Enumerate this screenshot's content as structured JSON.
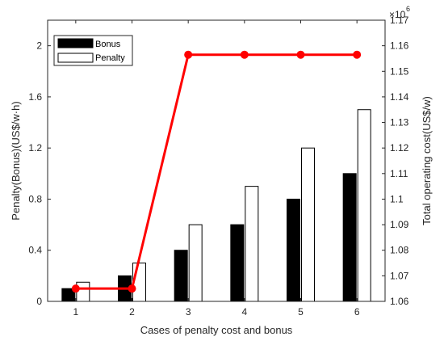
{
  "chart_data": {
    "type": "bar",
    "categories": [
      "1",
      "2",
      "3",
      "4",
      "5",
      "6"
    ],
    "series": [
      {
        "name": "Bonus",
        "axis": "left",
        "type": "bar",
        "color": "#000000",
        "values": [
          0.1,
          0.2,
          0.4,
          0.6,
          0.8,
          1.0
        ]
      },
      {
        "name": "Penalty",
        "axis": "left",
        "type": "bar",
        "color": "#ffffff",
        "values": [
          0.15,
          0.3,
          0.6,
          0.9,
          1.2,
          1.5
        ]
      },
      {
        "axis": "right",
        "type": "line",
        "color": "#ff0000",
        "values": [
          1.065,
          1.065,
          1.1565,
          1.1565,
          1.1565,
          1.1565
        ]
      }
    ],
    "xlabel": "Cases of penalty cost and bonus",
    "ylabel_left": "Penalty(Bonus)(US$/w·h)",
    "ylabel_right": "Total operating cost(US$/w)",
    "right_axis_multiplier": "×10",
    "right_axis_exponent": "6",
    "ylim_left": [
      0,
      2.2
    ],
    "ylim_right": [
      1.06,
      1.17
    ],
    "xlim": [
      0.5,
      6.5
    ],
    "left_ticks": [
      "0",
      "0.4",
      "0.8",
      "1.2",
      "1.6",
      "2"
    ],
    "left_tick_values": [
      0,
      0.4,
      0.8,
      1.2,
      1.6,
      2.0
    ],
    "right_ticks": [
      "1.06",
      "1.07",
      "1.08",
      "1.09",
      "1.1",
      "1.11",
      "1.12",
      "1.13",
      "1.14",
      "1.15",
      "1.16",
      "1.17"
    ],
    "right_tick_values": [
      1.06,
      1.07,
      1.08,
      1.09,
      1.1,
      1.11,
      1.12,
      1.13,
      1.14,
      1.15,
      1.16,
      1.17
    ],
    "legend": {
      "position": "top-left",
      "entries": [
        "Bonus",
        "Penalty"
      ]
    },
    "grid": false
  }
}
